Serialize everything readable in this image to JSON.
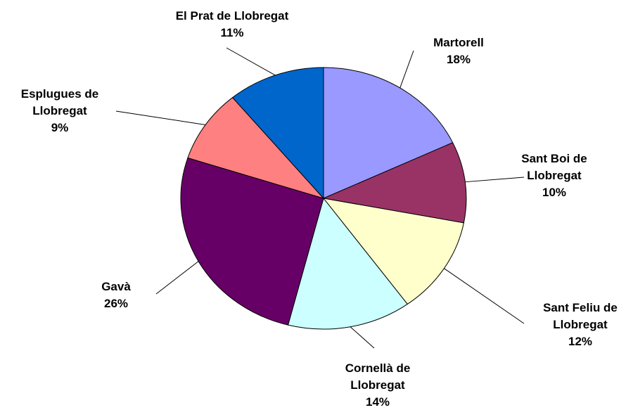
{
  "chart_data": {
    "type": "pie",
    "categories": [
      "Martorell",
      "Sant Boi de Llobregat",
      "Sant Feliu de Llobregat",
      "Cornellà de Llobregat",
      "Gavà",
      "Esplugues de Llobregat",
      "El Prat de Llobregat"
    ],
    "values": [
      18,
      10,
      12,
      14,
      26,
      9,
      11
    ],
    "value_labels": [
      "18%",
      "10%",
      "12%",
      "14%",
      "26%",
      "9%",
      "11%"
    ],
    "colors": [
      "#9999ff",
      "#993366",
      "#ffffcc",
      "#ccffff",
      "#660066",
      "#ff8080",
      "#0066cc"
    ]
  }
}
